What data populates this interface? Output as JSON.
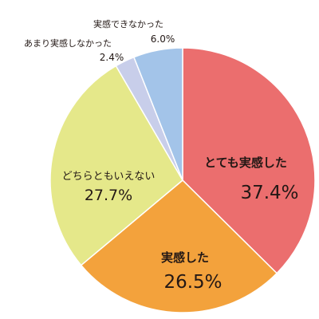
{
  "chart_data": {
    "type": "pie",
    "title": "",
    "start": "12 o'clock",
    "direction": "clockwise",
    "slices": [
      {
        "label": "とても実感した",
        "value": 37.4,
        "value_text": "37.4%",
        "color": "#EB6E6E"
      },
      {
        "label": "実感した",
        "value": 26.5,
        "value_text": "26.5%",
        "color": "#F3A23C"
      },
      {
        "label": "どちらともいえない",
        "value": 27.7,
        "value_text": "27.7%",
        "color": "#E5E88A"
      },
      {
        "label": "あまり実感しなかった",
        "value": 2.4,
        "value_text": "2.4%",
        "color": "#C8CEEA"
      },
      {
        "label": "実感できなかった",
        "value": 6.0,
        "value_text": "6.0%",
        "color": "#A3C4E9"
      }
    ]
  }
}
